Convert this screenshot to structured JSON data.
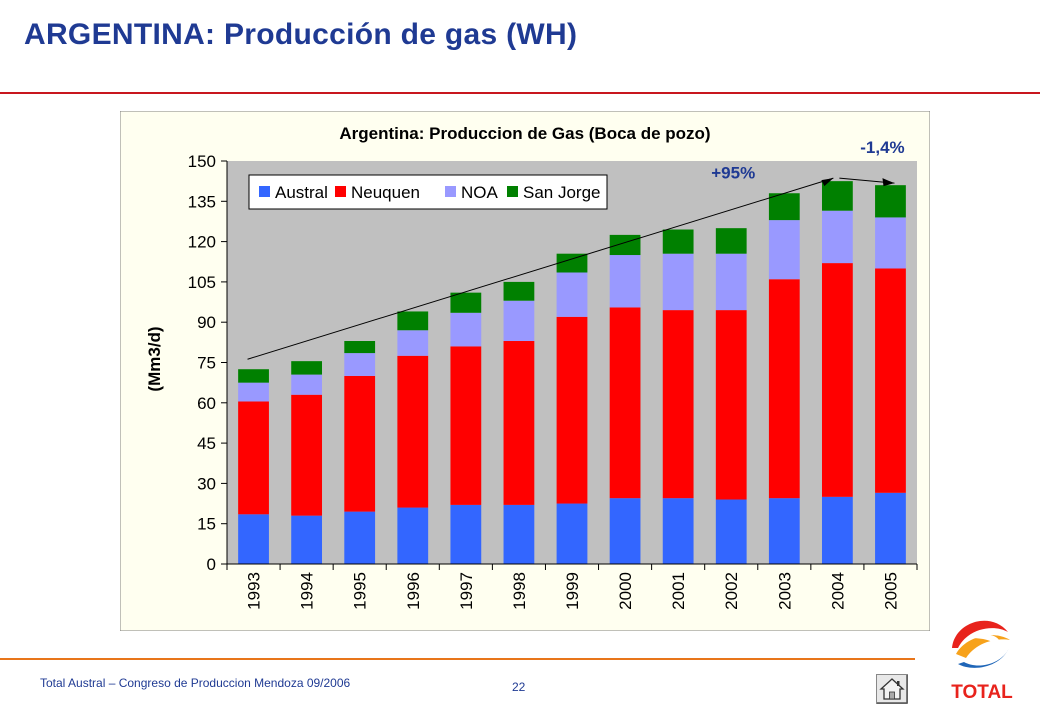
{
  "slide": {
    "title": "ARGENTINA:  Producción de gas (WH)",
    "footer": "Total Austral – Congreso de Produccion Mendoza 09/2006",
    "page_number": "22",
    "logo_text": "TOTAL"
  },
  "colors": {
    "title": "#1f3a93",
    "austral": "#3366ff",
    "neuquen": "#ff0000",
    "noa": "#9999ff",
    "san_jorge": "#008000",
    "plot_bg": "#c0c0c0",
    "chart_bg": "#fffff0",
    "annotation": "#1f3a93"
  },
  "chart_data": {
    "type": "bar",
    "stacked": true,
    "title": "Argentina: Produccion de Gas (Boca de pozo)",
    "ylabel": "(Mm3/d)",
    "xlabel": "",
    "ylim": [
      0,
      150
    ],
    "yticks": [
      0,
      15,
      30,
      45,
      60,
      75,
      90,
      105,
      120,
      135,
      150
    ],
    "grid": false,
    "legend": "top-left inside plot",
    "categories": [
      "1993",
      "1994",
      "1995",
      "1996",
      "1997",
      "1998",
      "1999",
      "2000",
      "2001",
      "2002",
      "2003",
      "2004",
      "2005"
    ],
    "series": [
      {
        "name": "Austral",
        "color": "#3366ff",
        "values": [
          18.5,
          18,
          19.5,
          21,
          22,
          22,
          22.5,
          24.5,
          24.5,
          24,
          24.5,
          25,
          26.5
        ]
      },
      {
        "name": "Neuquen",
        "color": "#ff0000",
        "values": [
          42,
          45,
          50.5,
          56.5,
          59,
          61,
          69.5,
          71,
          70,
          70.5,
          81.5,
          87,
          83.5
        ]
      },
      {
        "name": "NOA",
        "color": "#9999ff",
        "values": [
          7,
          7.5,
          8.5,
          9.5,
          12.5,
          15,
          16.5,
          19.5,
          21,
          21,
          22,
          19.5,
          19
        ]
      },
      {
        "name": "San Jorge",
        "color": "#008000",
        "values": [
          5,
          5,
          4.5,
          7,
          7.5,
          7,
          7,
          7.5,
          9,
          9.5,
          10,
          11,
          12
        ]
      }
    ],
    "annotations": [
      {
        "text": "+95%"
      },
      {
        "text": "-1,4%"
      }
    ]
  }
}
